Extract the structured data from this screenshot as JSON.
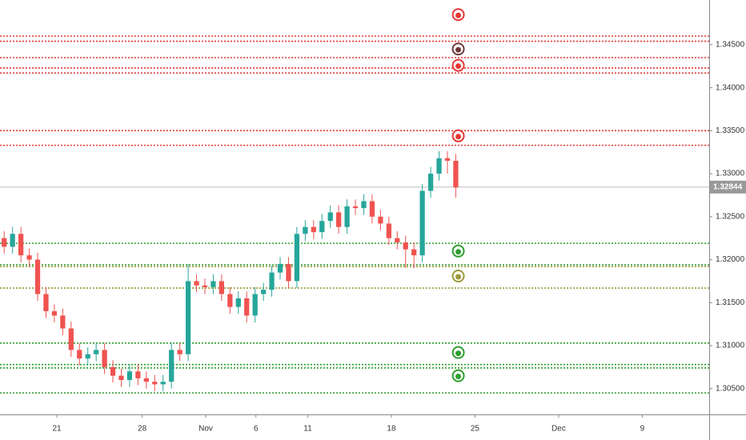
{
  "chart_data": {
    "type": "candlestick",
    "x": [
      0.25,
      0.75,
      1.25,
      1.75,
      2.25,
      2.75,
      3.25,
      3.75,
      4.25,
      4.75,
      5.25,
      5.75,
      6.25,
      6.75,
      7.25,
      7.75,
      8.25,
      8.75,
      9.25,
      9.75,
      10.25,
      10.75,
      11.25,
      11.75,
      12.25,
      12.75,
      13.25,
      13.75,
      14.25,
      14.75,
      15.25,
      15.75,
      16.25,
      16.75,
      17.25,
      17.75,
      18.25,
      18.75,
      19.25,
      19.75,
      20.25,
      20.75,
      21.25,
      21.75,
      22.25,
      22.75,
      23.25,
      23.75,
      24.25,
      24.75,
      25.25,
      25.75,
      26.25,
      26.75,
      27.25
    ],
    "open": [
      1.3225,
      1.3215,
      1.323,
      1.3205,
      1.32,
      1.316,
      1.314,
      1.3135,
      1.312,
      1.3095,
      1.3085,
      1.309,
      1.3095,
      1.3075,
      1.3065,
      1.306,
      1.307,
      1.3062,
      1.3058,
      1.3055,
      1.3058,
      1.3095,
      1.309,
      1.3175,
      1.317,
      1.3168,
      1.3175,
      1.316,
      1.3145,
      1.3155,
      1.3135,
      1.316,
      1.3165,
      1.3185,
      1.3195,
      1.3175,
      1.323,
      1.3238,
      1.3232,
      1.3245,
      1.3255,
      1.3238,
      1.3262,
      1.326,
      1.3268,
      1.325,
      1.3242,
      1.3225,
      1.322,
      1.3212,
      1.3205,
      1.328,
      1.33,
      1.3318,
      1.3315
    ],
    "high": [
      1.3233,
      1.3238,
      1.3238,
      1.3213,
      1.3208,
      1.3168,
      1.3148,
      1.3143,
      1.3128,
      1.3103,
      1.3098,
      1.3103,
      1.3103,
      1.3083,
      1.3073,
      1.3078,
      1.3078,
      1.307,
      1.3066,
      1.3066,
      1.3103,
      1.3103,
      1.3195,
      1.3183,
      1.3178,
      1.3183,
      1.3183,
      1.3168,
      1.3163,
      1.3163,
      1.3168,
      1.3173,
      1.3193,
      1.3203,
      1.3203,
      1.3238,
      1.3246,
      1.3246,
      1.3253,
      1.3263,
      1.3263,
      1.327,
      1.327,
      1.3276,
      1.3276,
      1.3258,
      1.325,
      1.3233,
      1.3228,
      1.322,
      1.3288,
      1.3308,
      1.3326,
      1.3326,
      1.3323
    ],
    "low": [
      1.3207,
      1.3207,
      1.3197,
      1.3192,
      1.3152,
      1.3132,
      1.3127,
      1.3112,
      1.3087,
      1.3077,
      1.3077,
      1.3082,
      1.3067,
      1.3057,
      1.3052,
      1.3052,
      1.3054,
      1.305,
      1.3047,
      1.3047,
      1.305,
      1.3082,
      1.3082,
      1.3162,
      1.316,
      1.316,
      1.3152,
      1.3137,
      1.3137,
      1.3127,
      1.3127,
      1.3152,
      1.3157,
      1.3177,
      1.3167,
      1.3167,
      1.3222,
      1.3224,
      1.3224,
      1.3237,
      1.323,
      1.323,
      1.3252,
      1.3252,
      1.3242,
      1.3234,
      1.3217,
      1.3212,
      1.319,
      1.319,
      1.3197,
      1.3272,
      1.3292,
      1.33,
      1.3272
    ],
    "close": [
      1.3215,
      1.323,
      1.3205,
      1.32,
      1.316,
      1.314,
      1.3135,
      1.312,
      1.3095,
      1.3085,
      1.309,
      1.3095,
      1.3075,
      1.3065,
      1.306,
      1.307,
      1.3062,
      1.3058,
      1.3055,
      1.3058,
      1.3095,
      1.309,
      1.3175,
      1.317,
      1.3168,
      1.3175,
      1.316,
      1.3145,
      1.3155,
      1.3135,
      1.316,
      1.3165,
      1.3185,
      1.3195,
      1.3175,
      1.323,
      1.3238,
      1.3232,
      1.3245,
      1.3255,
      1.3238,
      1.3262,
      1.326,
      1.3268,
      1.325,
      1.3242,
      1.3225,
      1.322,
      1.3212,
      1.3205,
      1.328,
      1.33,
      1.3318,
      1.3315,
      1.3284
    ],
    "up_color": "#26a69a",
    "down_color": "#ef5350",
    "xlim": [
      0,
      42.4
    ],
    "xticks": [
      {
        "value": 3.4,
        "label": "21"
      },
      {
        "value": 8.5,
        "label": "28"
      },
      {
        "value": 12.3,
        "label": "Nov"
      },
      {
        "value": 15.3,
        "label": "6"
      },
      {
        "value": 18.4,
        "label": "11"
      },
      {
        "value": 23.4,
        "label": "18"
      },
      {
        "value": 28.4,
        "label": "25"
      },
      {
        "value": 33.4,
        "label": "Dec"
      },
      {
        "value": 38.4,
        "label": "9"
      }
    ],
    "ylim": [
      1.302,
      1.3502
    ],
    "yticks": [
      {
        "value": 1.305,
        "label": "1.30500"
      },
      {
        "value": 1.31,
        "label": "1.31000"
      },
      {
        "value": 1.315,
        "label": "1.31500"
      },
      {
        "value": 1.32,
        "label": "1.32000"
      },
      {
        "value": 1.325,
        "label": "1.32500"
      },
      {
        "value": 1.33,
        "label": "1.33000"
      },
      {
        "value": 1.335,
        "label": "1.33500"
      },
      {
        "value": 1.34,
        "label": "1.34000"
      },
      {
        "value": 1.345,
        "label": "1.34500"
      }
    ],
    "last_price": {
      "value": 1.32844,
      "label": "1.32844"
    },
    "levels": [
      {
        "value": 1.346,
        "color": "#e53935"
      },
      {
        "value": 1.3454,
        "color": "#e53935"
      },
      {
        "value": 1.3435,
        "color": "#e53935"
      },
      {
        "value": 1.3423,
        "color": "#e53935"
      },
      {
        "value": 1.3417,
        "color": "#e53935"
      },
      {
        "value": 1.335,
        "color": "#e53935"
      },
      {
        "value": 1.3333,
        "color": "#e53935"
      },
      {
        "value": 1.3219,
        "color": "#2e9e2e"
      },
      {
        "value": 1.3194,
        "color": "#2e9e2e"
      },
      {
        "value": 1.3192,
        "color": "#9b9b3a"
      },
      {
        "value": 1.3167,
        "color": "#9b9b3a"
      },
      {
        "value": 1.3103,
        "color": "#2e9e2e"
      },
      {
        "value": 1.3078,
        "color": "#2e9e2e"
      },
      {
        "value": 1.3074,
        "color": "#2e9e2e"
      },
      {
        "value": 1.3045,
        "color": "#2e9e2e"
      }
    ],
    "markers": {
      "x": 27.4,
      "items": [
        {
          "value": 1.3485,
          "color": "#e53935"
        },
        {
          "value": 1.3445,
          "color": "#6d3a3a"
        },
        {
          "value": 1.3426,
          "color": "#e53935"
        },
        {
          "value": 1.3344,
          "color": "#e53935"
        },
        {
          "value": 1.321,
          "color": "#2e9e2e"
        },
        {
          "value": 1.3181,
          "color": "#9b9b3a"
        },
        {
          "value": 1.3092,
          "color": "#2e9e2e"
        },
        {
          "value": 1.3065,
          "color": "#2e9e2e"
        }
      ]
    }
  }
}
